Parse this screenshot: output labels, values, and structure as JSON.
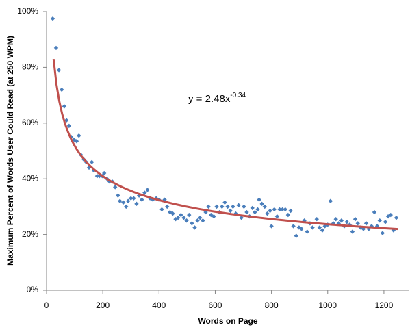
{
  "chart_data": {
    "type": "scatter",
    "x_label": "Words on Page",
    "y_label": "Maximum Percent of Words User Could Read (at 250 WPM)",
    "xlim": [
      0,
      1300
    ],
    "xticks": [
      0,
      200,
      400,
      600,
      800,
      1000,
      1200
    ],
    "ylim": [
      0,
      100
    ],
    "yticks": [
      {
        "value": 0,
        "label": "0%"
      },
      {
        "value": 20,
        "label": "20%"
      },
      {
        "value": 40,
        "label": "40%"
      },
      {
        "value": 60,
        "label": "60%"
      },
      {
        "value": 80,
        "label": "80%"
      },
      {
        "value": 100,
        "label": "100%"
      }
    ],
    "grid": false,
    "series": [
      {
        "color": "#4a7ebb",
        "x": [
          22,
          34,
          44,
          54,
          63,
          71,
          80,
          88,
          98,
          107,
          115,
          122,
          132,
          141,
          151,
          161,
          168,
          180,
          188,
          198,
          205,
          215,
          224,
          234,
          244,
          254,
          261,
          273,
          283,
          290,
          300,
          310,
          320,
          329,
          339,
          349,
          359,
          368,
          378,
          390,
          400,
          410,
          420,
          429,
          439,
          449,
          459,
          468,
          478,
          488,
          498,
          507,
          517,
          527,
          537,
          546,
          556,
          566,
          576,
          585,
          595,
          605,
          615,
          624,
          634,
          644,
          654,
          663,
          673,
          683,
          693,
          702,
          712,
          722,
          732,
          741,
          751,
          756,
          766,
          776,
          785,
          795,
          800,
          810,
          820,
          829,
          839,
          849,
          859,
          868,
          878,
          888,
          898,
          907,
          917,
          927,
          937,
          946,
          961,
          971,
          981,
          990,
          1000,
          1010,
          1020,
          1029,
          1039,
          1049,
          1059,
          1068,
          1078,
          1088,
          1098,
          1107,
          1117,
          1127,
          1137,
          1146,
          1156,
          1166,
          1176,
          1185,
          1195,
          1205,
          1215,
          1224,
          1234,
          1244
        ],
        "values": [
          97.5,
          87,
          79,
          72,
          66,
          61,
          59,
          55,
          54,
          53.5,
          55.5,
          48.6,
          47,
          46,
          44,
          46,
          43,
          41,
          41,
          41,
          42,
          40,
          39,
          39,
          37,
          34,
          32,
          31.5,
          30,
          32,
          33,
          33,
          31,
          34,
          32.5,
          35,
          36,
          33,
          32.5,
          33,
          32.5,
          29,
          32.5,
          30,
          28,
          27.5,
          25.5,
          26,
          27,
          26,
          25,
          27,
          24,
          22.5,
          25,
          26,
          25,
          28,
          30,
          27,
          26.5,
          30,
          28,
          30,
          31.5,
          30,
          28.5,
          30,
          27.5,
          30.5,
          26,
          30,
          28,
          26.5,
          29.5,
          28,
          29,
          32.5,
          31,
          30,
          27.5,
          28.5,
          23,
          29,
          26.5,
          29,
          29,
          29,
          27,
          28.5,
          23,
          19.5,
          22.5,
          22,
          25,
          21,
          24,
          22.5,
          25.5,
          22.5,
          21.5,
          23,
          23.5,
          32,
          24,
          25.5,
          24,
          25,
          23,
          24.5,
          23.5,
          21,
          25.5,
          24,
          22.5,
          22,
          24,
          22,
          23,
          28,
          23,
          25,
          20.5,
          24.5,
          26.5,
          27,
          21.5,
          26
        ]
      }
    ],
    "trendline": {
      "color": "#c0504d",
      "label_prefix": "y = ",
      "coefficient": 2.48,
      "label_var": "x",
      "exponent": -0.34,
      "xrange": [
        25,
        1250
      ]
    }
  }
}
